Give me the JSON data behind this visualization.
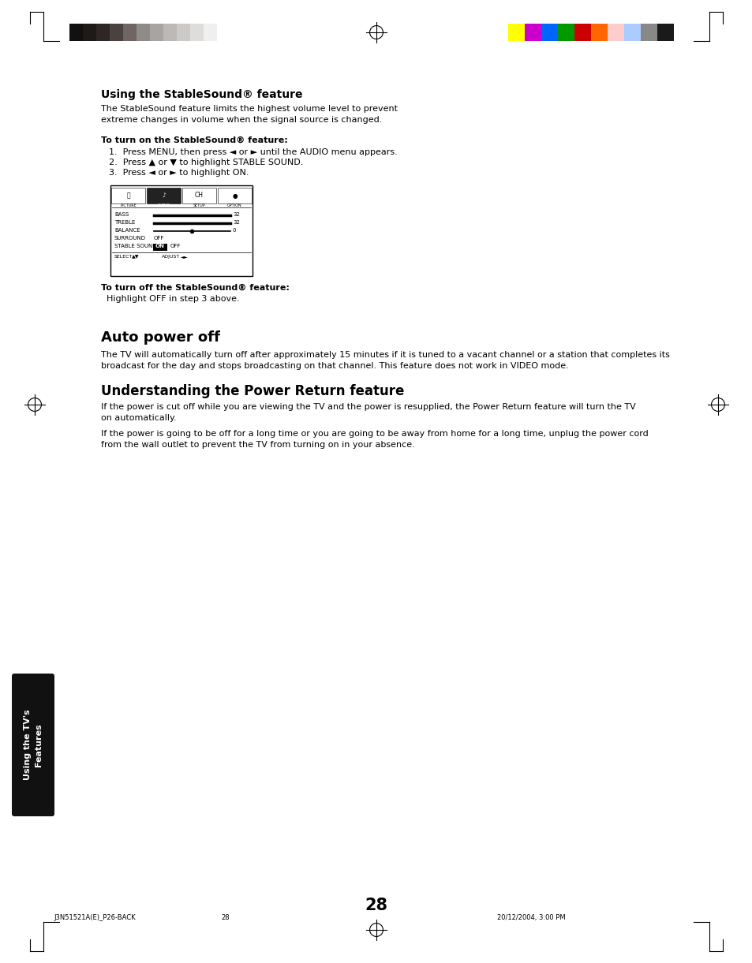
{
  "page_number": "28",
  "footer_left": "J3N51521A(E)_P26-BACK",
  "footer_center_page": "28",
  "footer_right": "20/12/2004, 3:00 PM",
  "bg_color": "#ffffff",
  "section1_title": "Using the StableSound® feature",
  "section1_body": "The StableSound feature limits the highest volume level to prevent\nextreme changes in volume when the signal source is changed.",
  "section1_sub1_bold": "To turn on the StableSound® feature:",
  "section1_steps": [
    "1.  Press MENU, then press ◄ or ► until the AUDIO menu appears.",
    "2.  Press ▲ or ▼ to highlight STABLE SOUND.",
    "3.  Press ◄ or ► to highlight ON."
  ],
  "section1_sub2_bold": "To turn off the StableSound® feature:",
  "section1_sub2_body": "  Highlight OFF in step 3 above.",
  "section2_title": "Auto power off",
  "section2_body": "The TV will automatically turn off after approximately 15 minutes if it is tuned to a vacant channel or a station that completes its\nbroadcast for the day and stops broadcasting on that channel. This feature does not work in VIDEO mode.",
  "section3_title": "Understanding the Power Return feature",
  "section3_body1": "If the power is cut off while you are viewing the TV and the power is resupplied, the Power Return feature will turn the TV\non automatically.",
  "section3_body2": "If the power is going to be off for a long time or you are going to be away from home for a long time, unplug the power cord\nfrom the wall outlet to prevent the TV from turning on in your absence.",
  "sidebar_text": "Using the TV's\nFeatures",
  "sidebar_bg": "#111111",
  "sidebar_text_color": "#ffffff",
  "color_bars_left": [
    "#111111",
    "#1e1a18",
    "#2e2725",
    "#4a4240",
    "#706562",
    "#8f8b89",
    "#a8a4a2",
    "#bcb9b7",
    "#cccac8",
    "#dedddc",
    "#efefee",
    "#ffffff"
  ],
  "color_bars_right": [
    "#ffff00",
    "#cc00cc",
    "#0066ff",
    "#009900",
    "#cc0000",
    "#ff6600",
    "#ffcccc",
    "#aaccff",
    "#888888",
    "#1a1a1a"
  ],
  "margin_lines_color": "#000000"
}
